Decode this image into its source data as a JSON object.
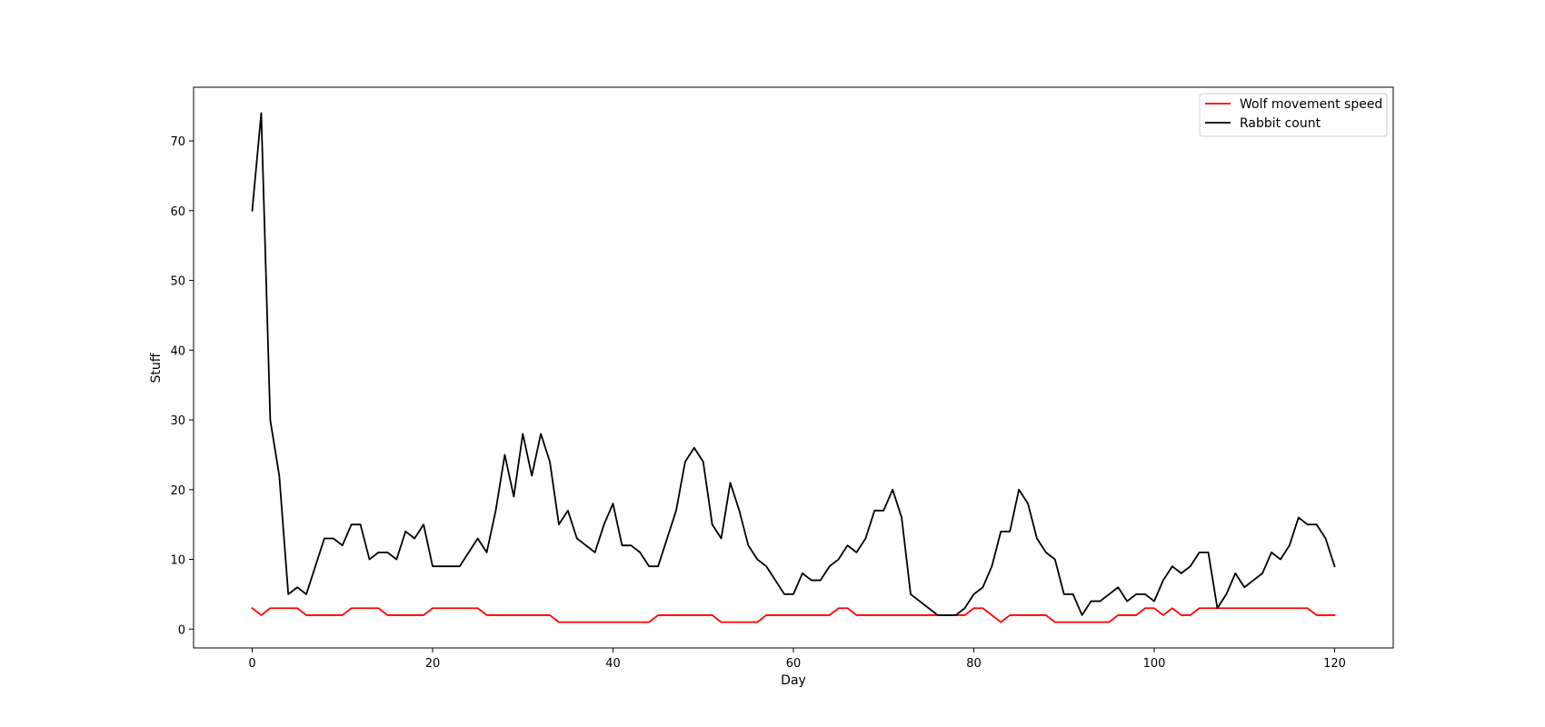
{
  "chart_data": {
    "type": "line",
    "title": "",
    "xlabel": "Day",
    "ylabel": "Stuff",
    "xlim": [
      -6.5,
      126.5
    ],
    "ylim": [
      -2.7,
      77.7
    ],
    "xticks": [
      0,
      20,
      40,
      60,
      80,
      100,
      120
    ],
    "yticks": [
      0,
      10,
      20,
      30,
      40,
      50,
      60,
      70
    ],
    "grid": false,
    "legend": "top-right",
    "series": [
      {
        "name": "Wolf movement speed",
        "color": "#ff0000",
        "values": [
          3,
          2,
          3,
          3,
          3,
          3,
          2,
          2,
          2,
          2,
          2,
          3,
          3,
          3,
          3,
          2,
          2,
          2,
          2,
          2,
          3,
          3,
          3,
          3,
          3,
          3,
          2,
          2,
          2,
          2,
          2,
          2,
          2,
          2,
          1,
          1,
          1,
          1,
          1,
          1,
          1,
          1,
          1,
          1,
          1,
          2,
          2,
          2,
          2,
          2,
          2,
          2,
          1,
          1,
          1,
          1,
          1,
          2,
          2,
          2,
          2,
          2,
          2,
          2,
          2,
          3,
          3,
          2,
          2,
          2,
          2,
          2,
          2,
          2,
          2,
          2,
          2,
          2,
          2,
          2,
          3,
          3,
          2,
          1,
          2,
          2,
          2,
          2,
          2,
          1,
          1,
          1,
          1,
          1,
          1,
          1,
          2,
          2,
          2,
          3,
          3,
          2,
          3,
          2,
          2,
          3,
          3,
          3,
          3,
          3,
          3,
          3,
          3,
          3,
          3,
          3,
          3,
          3,
          2,
          2,
          2
        ]
      },
      {
        "name": "Rabbit count",
        "color": "#000000",
        "values": [
          60,
          74,
          30,
          22,
          5,
          6,
          5,
          9,
          13,
          13,
          12,
          15,
          15,
          10,
          11,
          11,
          10,
          14,
          13,
          15,
          9,
          9,
          9,
          9,
          11,
          13,
          11,
          17,
          25,
          19,
          28,
          22,
          28,
          24,
          15,
          17,
          13,
          12,
          11,
          15,
          18,
          12,
          12,
          11,
          9,
          9,
          13,
          17,
          24,
          26,
          24,
          15,
          13,
          21,
          17,
          12,
          10,
          9,
          7,
          5,
          5,
          8,
          7,
          7,
          9,
          10,
          12,
          11,
          13,
          17,
          17,
          20,
          16,
          5,
          4,
          3,
          2,
          2,
          2,
          3,
          5,
          6,
          9,
          14,
          14,
          20,
          18,
          13,
          11,
          10,
          5,
          5,
          2,
          4,
          4,
          5,
          6,
          4,
          5,
          5,
          4,
          7,
          9,
          8,
          9,
          11,
          11,
          3,
          5,
          8,
          6,
          7,
          8,
          11,
          10,
          12,
          16,
          15,
          15,
          13,
          9
        ]
      }
    ]
  }
}
